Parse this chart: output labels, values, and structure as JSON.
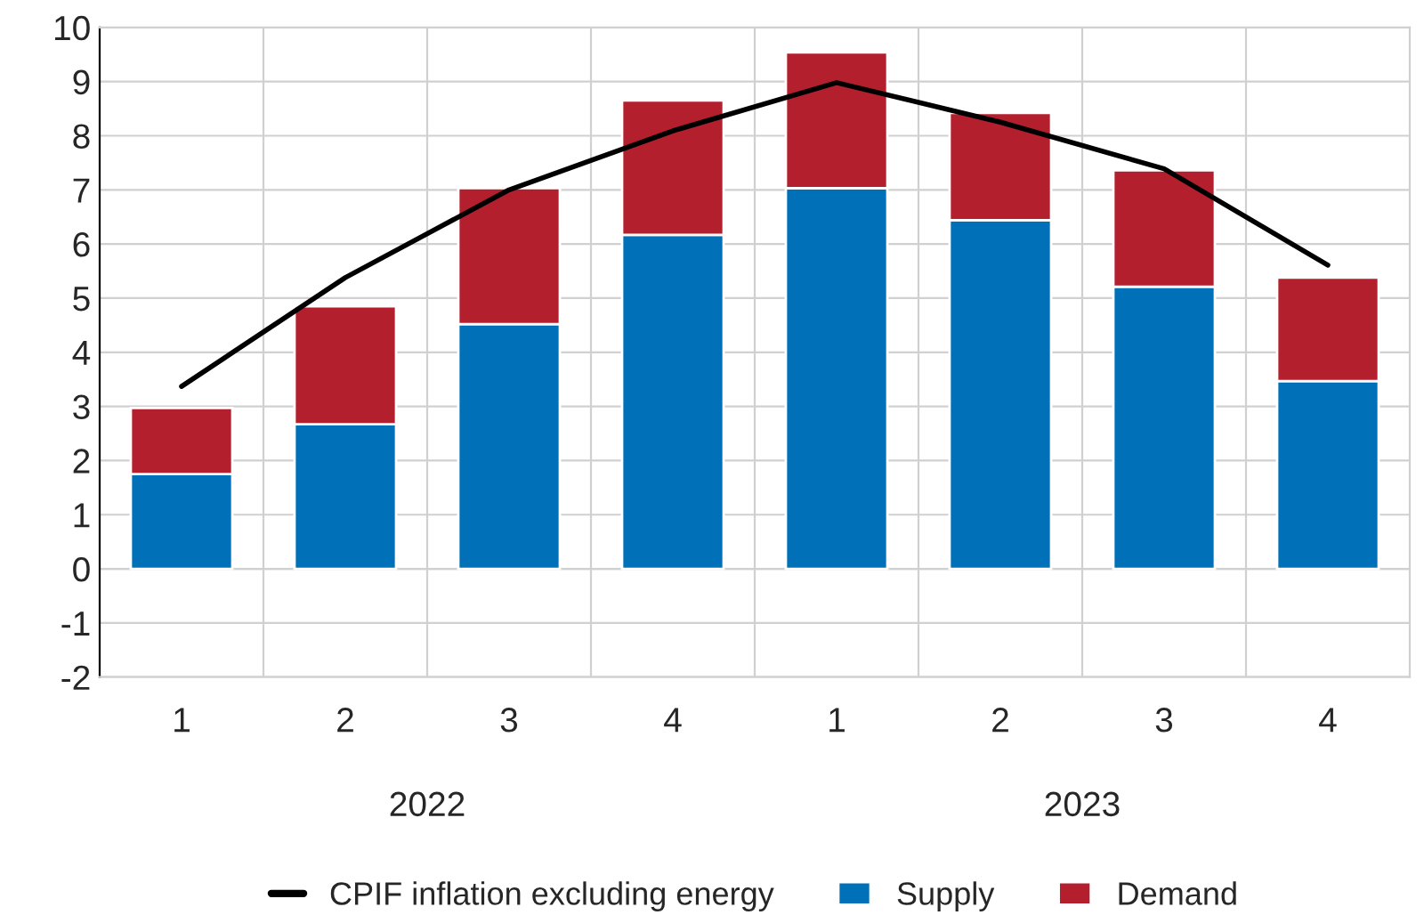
{
  "chart_data": {
    "type": "bar",
    "stacked": true,
    "categories": [
      "1",
      "2",
      "3",
      "4",
      "1",
      "2",
      "3",
      "4"
    ],
    "series": [
      {
        "name": "Supply",
        "color": "#0070b8",
        "values": [
          1.75,
          2.67,
          4.52,
          6.17,
          7.03,
          6.44,
          5.21,
          3.47
        ]
      },
      {
        "name": "Demand",
        "color": "#b41f2e",
        "values": [
          1.22,
          2.18,
          2.51,
          2.48,
          2.51,
          1.98,
          2.15,
          1.91
        ]
      },
      {
        "name": "CPIF inflation excluding energy",
        "type": "line",
        "color": "#000000",
        "values": [
          3.37,
          5.38,
          7.0,
          8.09,
          8.98,
          8.25,
          7.39,
          5.61
        ]
      }
    ],
    "annotations": [
      "2022",
      "2023"
    ],
    "ylim": [
      -2,
      10
    ],
    "yticks": [
      -2,
      -1,
      0,
      1,
      2,
      3,
      4,
      5,
      6,
      7,
      8,
      9,
      10
    ],
    "grid": true,
    "legend": "bottom",
    "marker": "none",
    "line_style": "solid"
  }
}
